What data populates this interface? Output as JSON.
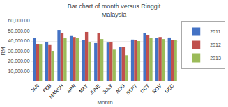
{
  "chart_data": {
    "type": "bar",
    "title": "Bar chart of month versus Ringgit\nMalaysia",
    "xlabel": "Month",
    "ylabel": "RM",
    "categories": [
      "JAN",
      "FEB",
      "MARCH",
      "APR",
      "MAY",
      "JUNE",
      "JULY",
      "AUG",
      "SEPT",
      "OCT",
      "NOV",
      "DEC"
    ],
    "series": [
      {
        "name": "2011",
        "color": "#4472C4",
        "values": [
          43000,
          39000,
          51000,
          45000,
          41000,
          38000,
          38500,
          34000,
          41500,
          48000,
          43000,
          43500
        ]
      },
      {
        "name": "2012",
        "color": "#C0504D",
        "values": [
          37000,
          36000,
          48000,
          44000,
          49000,
          48000,
          39000,
          34500,
          41000,
          46000,
          44000,
          41000
        ]
      },
      {
        "name": "2013",
        "color": "#9BBB59",
        "values": [
          36500,
          30000,
          43000,
          43000,
          39000,
          42000,
          31500,
          26000,
          40000,
          43000,
          42000,
          41000
        ]
      }
    ],
    "ylim": [
      0,
      60000
    ],
    "yticks": [
      {
        "value": 10000,
        "label": "10,000.00"
      },
      {
        "value": 20000,
        "label": "20,000.00"
      },
      {
        "value": 30000,
        "label": "30,000.00"
      },
      {
        "value": 40000,
        "label": "40,000.00"
      },
      {
        "value": 50000,
        "label": "50,000.00"
      },
      {
        "value": 60000,
        "label": "60,000.00"
      }
    ],
    "grid": true,
    "legend": "right"
  }
}
